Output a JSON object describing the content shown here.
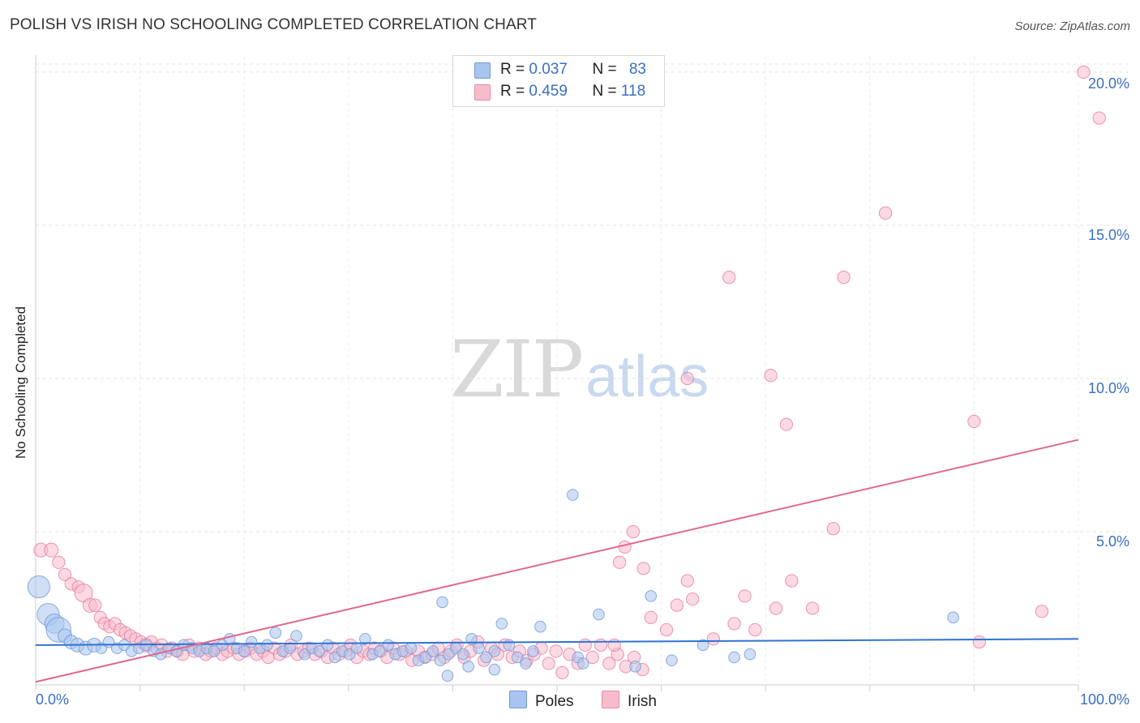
{
  "title": "POLISH VS IRISH NO SCHOOLING COMPLETED CORRELATION CHART",
  "source": "Source: ZipAtlas.com",
  "watermark": {
    "zip": "ZIP",
    "atlas": "atlas"
  },
  "legend": {
    "rows": [
      {
        "r_label": "R = ",
        "r_value": "0.037",
        "n_label": "N = ",
        "n_value": "83",
        "color": "#a9c4ef",
        "border": "#6f9ad8"
      },
      {
        "r_label": "R = ",
        "r_value": "0.459",
        "n_label": "N = ",
        "n_value": "118",
        "color": "#f7bccc",
        "border": "#e88aa6"
      }
    ]
  },
  "bottom_legend": [
    {
      "label": "Poles",
      "color": "#a9c4ef",
      "border": "#6f9ad8"
    },
    {
      "label": "Irish",
      "color": "#f7bccc",
      "border": "#e88aa6"
    }
  ],
  "chart_data": {
    "type": "scatter",
    "title": "POLISH VS IRISH NO SCHOOLING COMPLETED CORRELATION CHART",
    "xlabel": "",
    "ylabel": "No Schooling Completed",
    "xlim": [
      0,
      100
    ],
    "ylim": [
      0,
      20.5
    ],
    "x_tick_labels": [
      "0.0%",
      "100.0%"
    ],
    "y_ticks": [
      5,
      10,
      15,
      20
    ],
    "y_tick_labels": [
      "5.0%",
      "10.0%",
      "15.0%",
      "20.0%"
    ],
    "grid": true,
    "series": [
      {
        "name": "Poles",
        "color": "#6f9ad8",
        "fill": "#a9c4ef",
        "trend": {
          "x": [
            0,
            100
          ],
          "y": [
            1.3,
            1.5
          ]
        },
        "points": [
          [
            0.3,
            3.2,
            1.6
          ],
          [
            1.2,
            2.3,
            1.6
          ],
          [
            1.8,
            2.0,
            1.4
          ],
          [
            2.2,
            1.8,
            1.8
          ],
          [
            2.8,
            1.6,
            1.0
          ],
          [
            3.4,
            1.4,
            1.0
          ],
          [
            4.0,
            1.3,
            1.0
          ],
          [
            4.8,
            1.2,
            1.0
          ],
          [
            5.6,
            1.3,
            1.0
          ],
          [
            6.3,
            1.2,
            0.8
          ],
          [
            7.0,
            1.4,
            0.8
          ],
          [
            7.8,
            1.2,
            0.8
          ],
          [
            8.5,
            1.3,
            0.8
          ],
          [
            9.2,
            1.1,
            0.8
          ],
          [
            9.9,
            1.2,
            0.8
          ],
          [
            10.6,
            1.3,
            0.8
          ],
          [
            11.3,
            1.1,
            0.8
          ],
          [
            12.0,
            1.0,
            0.8
          ],
          [
            12.8,
            1.2,
            0.8
          ],
          [
            13.5,
            1.1,
            0.8
          ],
          [
            14.2,
            1.3,
            0.8
          ],
          [
            15.0,
            1.2,
            0.8
          ],
          [
            15.7,
            1.1,
            0.8
          ],
          [
            16.4,
            1.2,
            0.8
          ],
          [
            17.1,
            1.1,
            0.8
          ],
          [
            17.9,
            1.3,
            0.8
          ],
          [
            18.6,
            1.5,
            0.8
          ],
          [
            19.3,
            1.2,
            0.8
          ],
          [
            20.0,
            1.1,
            0.8
          ],
          [
            20.7,
            1.4,
            0.8
          ],
          [
            21.5,
            1.2,
            0.8
          ],
          [
            22.2,
            1.3,
            0.8
          ],
          [
            23.0,
            1.7,
            0.8
          ],
          [
            23.7,
            1.1,
            0.8
          ],
          [
            24.4,
            1.2,
            0.8
          ],
          [
            25.0,
            1.6,
            0.8
          ],
          [
            25.8,
            1.0,
            0.8
          ],
          [
            26.5,
            1.2,
            0.8
          ],
          [
            27.2,
            1.1,
            0.8
          ],
          [
            28.0,
            1.3,
            0.8
          ],
          [
            28.7,
            0.9,
            0.8
          ],
          [
            29.4,
            1.1,
            0.8
          ],
          [
            30.1,
            1.0,
            0.8
          ],
          [
            30.8,
            1.2,
            0.8
          ],
          [
            31.6,
            1.5,
            0.8
          ],
          [
            32.3,
            1.0,
            0.8
          ],
          [
            33.0,
            1.1,
            0.8
          ],
          [
            33.8,
            1.3,
            0.8
          ],
          [
            34.5,
            1.0,
            0.8
          ],
          [
            35.2,
            1.1,
            0.8
          ],
          [
            36.0,
            1.2,
            0.8
          ],
          [
            36.7,
            0.8,
            0.8
          ],
          [
            37.4,
            0.9,
            0.8
          ],
          [
            38.1,
            1.1,
            0.8
          ],
          [
            38.8,
            0.8,
            0.8
          ],
          [
            39.6,
            1.0,
            0.8
          ],
          [
            40.3,
            1.2,
            0.8
          ],
          [
            41.0,
            1.0,
            0.8
          ],
          [
            41.8,
            1.5,
            0.8
          ],
          [
            42.5,
            1.2,
            0.8
          ],
          [
            43.2,
            0.9,
            0.8
          ],
          [
            44.0,
            1.1,
            0.8
          ],
          [
            44.7,
            2.0,
            0.8
          ],
          [
            45.4,
            1.3,
            0.8
          ],
          [
            46.2,
            0.9,
            0.8
          ],
          [
            47.0,
            0.7,
            0.8
          ],
          [
            47.7,
            1.1,
            0.8
          ],
          [
            48.4,
            1.9,
            0.8
          ],
          [
            39.0,
            2.7,
            0.8
          ],
          [
            39.5,
            0.3,
            0.8
          ],
          [
            41.5,
            0.6,
            0.8
          ],
          [
            44.0,
            0.5,
            0.8
          ],
          [
            51.5,
            6.2,
            0.8
          ],
          [
            52.0,
            0.9,
            0.8
          ],
          [
            54.0,
            2.3,
            0.8
          ],
          [
            57.5,
            0.6,
            0.8
          ],
          [
            59.0,
            2.9,
            0.8
          ],
          [
            61.0,
            0.8,
            0.8
          ],
          [
            64.0,
            1.3,
            0.8
          ],
          [
            67.0,
            0.9,
            0.8
          ],
          [
            68.5,
            1.0,
            0.8
          ],
          [
            88.0,
            2.2,
            0.8
          ],
          [
            52.5,
            0.7,
            0.8
          ]
        ]
      },
      {
        "name": "Irish",
        "color": "#e8799c",
        "fill": "#f7bccc",
        "trend": {
          "x": [
            0,
            100
          ],
          "y": [
            0.1,
            8.0
          ]
        },
        "points": [
          [
            0.5,
            4.4,
            1.0
          ],
          [
            1.5,
            4.4,
            1.0
          ],
          [
            2.2,
            4.0,
            0.9
          ],
          [
            2.8,
            3.6,
            0.9
          ],
          [
            3.4,
            3.3,
            0.9
          ],
          [
            4.1,
            3.2,
            0.9
          ],
          [
            4.6,
            3.0,
            1.3
          ],
          [
            5.2,
            2.6,
            1.0
          ],
          [
            5.7,
            2.6,
            0.9
          ],
          [
            6.2,
            2.2,
            0.9
          ],
          [
            6.6,
            2.0,
            0.9
          ],
          [
            7.1,
            1.9,
            0.9
          ],
          [
            7.6,
            2.0,
            0.9
          ],
          [
            8.1,
            1.8,
            0.9
          ],
          [
            8.6,
            1.7,
            0.9
          ],
          [
            9.1,
            1.6,
            0.9
          ],
          [
            9.6,
            1.5,
            0.9
          ],
          [
            10.1,
            1.4,
            0.9
          ],
          [
            10.6,
            1.3,
            1.0
          ],
          [
            11.1,
            1.4,
            0.9
          ],
          [
            11.6,
            1.2,
            0.9
          ],
          [
            12.1,
            1.3,
            0.9
          ],
          [
            12.6,
            1.1,
            0.9
          ],
          [
            13.1,
            1.2,
            0.9
          ],
          [
            13.6,
            1.1,
            0.9
          ],
          [
            14.1,
            1.0,
            0.9
          ],
          [
            14.7,
            1.3,
            0.9
          ],
          [
            15.2,
            1.1,
            0.9
          ],
          [
            15.7,
            1.2,
            0.9
          ],
          [
            16.3,
            1.0,
            0.9
          ],
          [
            16.8,
            1.1,
            0.9
          ],
          [
            17.3,
            1.2,
            0.9
          ],
          [
            17.9,
            1.0,
            0.9
          ],
          [
            18.4,
            1.1,
            0.9
          ],
          [
            19.0,
            1.2,
            0.9
          ],
          [
            19.5,
            1.0,
            0.9
          ],
          [
            20.1,
            1.1,
            0.9
          ],
          [
            20.6,
            1.2,
            0.9
          ],
          [
            21.2,
            1.0,
            0.9
          ],
          [
            21.8,
            1.1,
            0.9
          ],
          [
            22.3,
            0.9,
            0.9
          ],
          [
            22.9,
            1.2,
            0.9
          ],
          [
            23.4,
            1.0,
            0.9
          ],
          [
            24.0,
            1.1,
            0.9
          ],
          [
            24.5,
            1.3,
            0.9
          ],
          [
            25.1,
            1.0,
            0.9
          ],
          [
            25.7,
            1.1,
            0.9
          ],
          [
            26.2,
            1.2,
            0.9
          ],
          [
            26.8,
            1.0,
            0.9
          ],
          [
            27.4,
            1.1,
            0.9
          ],
          [
            28.0,
            0.9,
            0.9
          ],
          [
            28.5,
            1.2,
            0.9
          ],
          [
            29.1,
            1.0,
            0.9
          ],
          [
            29.7,
            1.1,
            0.9
          ],
          [
            30.2,
            1.3,
            0.9
          ],
          [
            30.8,
            0.9,
            0.9
          ],
          [
            31.4,
            1.1,
            0.9
          ],
          [
            32.0,
            1.0,
            0.9
          ],
          [
            32.5,
            1.2,
            0.9
          ],
          [
            33.1,
            1.1,
            0.9
          ],
          [
            33.7,
            0.9,
            0.9
          ],
          [
            34.3,
            1.2,
            0.9
          ],
          [
            34.9,
            1.0,
            0.9
          ],
          [
            35.5,
            1.1,
            0.9
          ],
          [
            36.1,
            0.8,
            0.9
          ],
          [
            36.7,
            1.1,
            0.9
          ],
          [
            37.3,
            0.9,
            0.9
          ],
          [
            38.0,
            1.0,
            0.9
          ],
          [
            38.6,
            1.2,
            0.9
          ],
          [
            39.2,
            0.9,
            0.9
          ],
          [
            39.8,
            1.1,
            0.9
          ],
          [
            40.4,
            1.3,
            0.9
          ],
          [
            41.1,
            0.9,
            0.9
          ],
          [
            41.7,
            1.1,
            0.9
          ],
          [
            42.4,
            1.4,
            0.9
          ],
          [
            43.0,
            0.8,
            0.9
          ],
          [
            43.7,
            1.2,
            0.9
          ],
          [
            44.3,
            1.0,
            0.9
          ],
          [
            45.0,
            1.3,
            0.9
          ],
          [
            45.7,
            0.9,
            0.9
          ],
          [
            46.4,
            1.1,
            0.9
          ],
          [
            47.1,
            0.8,
            0.9
          ],
          [
            47.8,
            1.0,
            0.9
          ],
          [
            48.5,
            1.2,
            0.9
          ],
          [
            49.2,
            0.7,
            0.9
          ],
          [
            49.9,
            1.1,
            0.9
          ],
          [
            50.5,
            0.4,
            0.9
          ],
          [
            51.2,
            1.0,
            0.9
          ],
          [
            52.0,
            0.7,
            0.9
          ],
          [
            52.7,
            1.3,
            0.9
          ],
          [
            53.4,
            0.9,
            0.9
          ],
          [
            54.2,
            1.3,
            0.9
          ],
          [
            55.0,
            0.7,
            0.9
          ],
          [
            55.8,
            1.0,
            0.9
          ],
          [
            56.6,
            0.6,
            0.9
          ],
          [
            57.4,
            0.9,
            0.9
          ],
          [
            58.2,
            0.5,
            0.9
          ],
          [
            55.5,
            1.3,
            0.9
          ],
          [
            56.0,
            4.0,
            0.9
          ],
          [
            56.5,
            4.5,
            0.9
          ],
          [
            57.3,
            5.0,
            0.9
          ],
          [
            58.3,
            3.8,
            0.9
          ],
          [
            59.0,
            2.2,
            0.9
          ],
          [
            60.5,
            1.8,
            0.9
          ],
          [
            61.5,
            2.6,
            0.9
          ],
          [
            62.5,
            3.4,
            0.9
          ],
          [
            63.0,
            2.8,
            0.9
          ],
          [
            65.0,
            1.5,
            0.9
          ],
          [
            67.0,
            2.0,
            0.9
          ],
          [
            68.0,
            2.9,
            0.9
          ],
          [
            69.0,
            1.8,
            0.9
          ],
          [
            71.0,
            2.5,
            0.9
          ],
          [
            72.5,
            3.4,
            0.9
          ],
          [
            74.5,
            2.5,
            0.9
          ],
          [
            76.5,
            5.1,
            0.9
          ],
          [
            62.5,
            10.0,
            0.9
          ],
          [
            66.5,
            13.3,
            0.9
          ],
          [
            70.5,
            10.1,
            0.9
          ],
          [
            72.0,
            8.5,
            0.9
          ],
          [
            77.5,
            13.3,
            0.9
          ],
          [
            81.5,
            15.4,
            0.9
          ],
          [
            90.0,
            8.6,
            0.9
          ],
          [
            90.5,
            1.4,
            0.9
          ],
          [
            96.5,
            2.4,
            0.9
          ],
          [
            100.5,
            20.0,
            0.9
          ],
          [
            102.0,
            18.5,
            0.9
          ]
        ]
      }
    ]
  }
}
